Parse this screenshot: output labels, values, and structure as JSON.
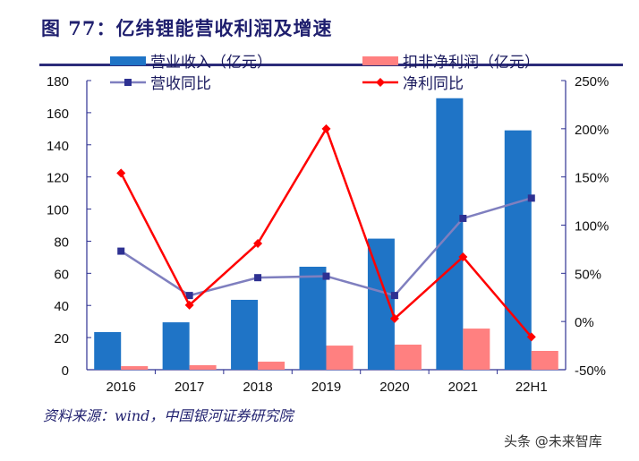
{
  "title": "图 77：亿纬锂能营收利润及增速",
  "source": "资料来源：wind，中国银河证券研究院",
  "watermark": "头条 @未来智库",
  "chart_data": {
    "type": "bar+line",
    "categories": [
      "2016",
      "2017",
      "2018",
      "2019",
      "2020",
      "2021",
      "22H1"
    ],
    "left_axis": {
      "ylim": [
        0,
        180
      ],
      "ticks": [
        "0",
        "20",
        "40",
        "60",
        "80",
        "100",
        "120",
        "140",
        "160",
        "180"
      ]
    },
    "right_axis": {
      "ylim": [
        -50,
        250
      ],
      "ticks": [
        "-50%",
        "0%",
        "50%",
        "100%",
        "150%",
        "200%",
        "250%"
      ]
    },
    "legend_position": "top",
    "grid": false,
    "series": [
      {
        "name": "营业收入（亿元）",
        "type": "bar",
        "axis": "left",
        "color": "#1f74c6",
        "values": [
          23.4,
          29.5,
          43.5,
          64.1,
          81.6,
          169.0,
          149.0
        ]
      },
      {
        "name": "扣非净利润（亿元）",
        "type": "bar",
        "axis": "left",
        "color": "#ff8080",
        "values": [
          2.2,
          2.8,
          5.0,
          15.0,
          15.6,
          25.6,
          11.7
        ]
      },
      {
        "name": "营收同比",
        "type": "line",
        "axis": "right",
        "color": "#7f7fbf",
        "marker_color": "#2e3192",
        "marker": "square",
        "values": [
          73,
          27,
          45.5,
          47,
          27,
          107,
          128
        ]
      },
      {
        "name": "净利同比",
        "type": "line",
        "axis": "right",
        "color": "#ff0000",
        "marker": "diamond",
        "values": [
          154,
          17,
          81,
          200,
          3,
          67,
          -16
        ]
      }
    ]
  }
}
